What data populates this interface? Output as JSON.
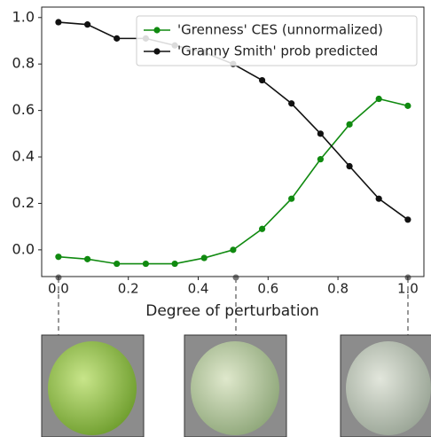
{
  "chart_data": {
    "type": "line",
    "xlabel": "Degree of perturbation",
    "x": [
      0,
      0.083,
      0.167,
      0.25,
      0.333,
      0.417,
      0.5,
      0.583,
      0.667,
      0.75,
      0.833,
      0.917,
      1.0
    ],
    "series": [
      {
        "name": "'Grenness' CES (unnormalized)",
        "color": "#108a10",
        "values": [
          -0.03,
          -0.04,
          -0.06,
          -0.06,
          -0.06,
          -0.035,
          0.0,
          0.09,
          0.22,
          0.39,
          0.54,
          0.65,
          0.62
        ]
      },
      {
        "name": "'Granny Smith' prob predicted",
        "color": "#111111",
        "values": [
          0.98,
          0.97,
          0.91,
          0.91,
          0.88,
          0.85,
          0.8,
          0.73,
          0.63,
          0.5,
          0.36,
          0.22,
          0.13
        ]
      }
    ],
    "xlim": [
      -0.048,
      1.046
    ],
    "ylim": [
      -0.115,
      1.045
    ],
    "xticks": [
      {
        "value": 0,
        "label": "0.0"
      },
      0.2,
      0.4,
      0.6,
      0.8,
      {
        "value": 1,
        "label": "1.0"
      }
    ],
    "yticks": [
      {
        "value": 0,
        "label": "0.0"
      },
      0.2,
      0.4,
      0.6,
      0.8,
      {
        "value": 1,
        "label": "1.0"
      }
    ],
    "legend": "upper right"
  }
}
